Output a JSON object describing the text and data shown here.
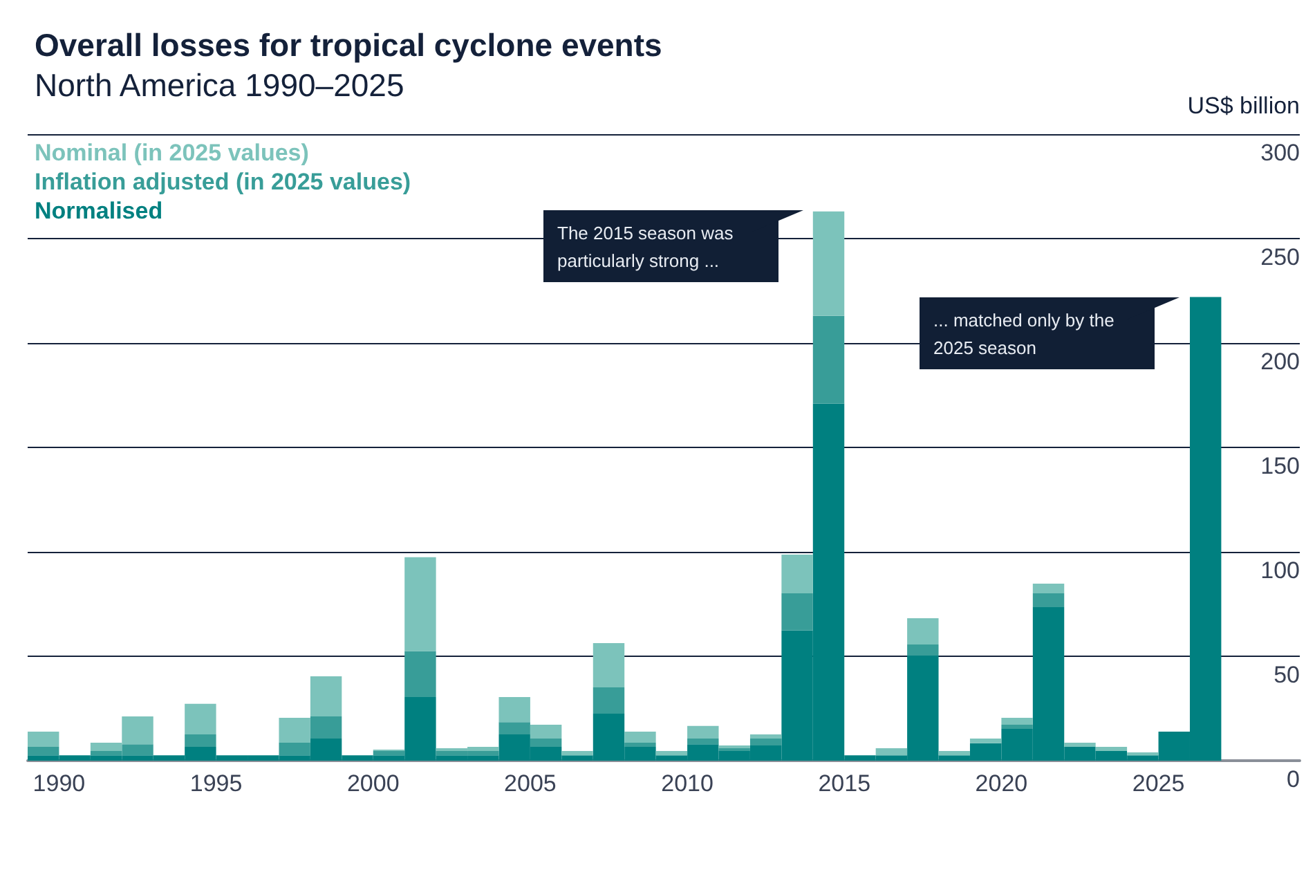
{
  "chart_data": {
    "type": "bar",
    "title": "Overall losses for tropical cyclone events",
    "subtitle": "North America 1990–2025",
    "ylabel": "US$ billion",
    "stacked": true,
    "x": [
      1989.5,
      1990.5,
      1991.5,
      1992.5,
      1993.5,
      1994.5,
      1995.5,
      1996.5,
      1997.5,
      1998.5,
      1999.5,
      2000.5,
      2001.5,
      2002.5,
      2003.5,
      2004.5,
      2005.5,
      2006.5,
      2007.5,
      2008.5,
      2009.5,
      2010.5,
      2011.5,
      2012.5,
      2013.5,
      2014.5,
      2015.5,
      2016.5,
      2017.5,
      2018.5,
      2019.5,
      2020.5,
      2021.5,
      2022.5,
      2023.5,
      2024.5,
      2025.5,
      2026.5
    ],
    "series": [
      {
        "name": "Normalised",
        "color": "#008080",
        "values": [
          2.6,
          2.6,
          2.6,
          2.6,
          2.6,
          6.6,
          2.6,
          2.6,
          2.6,
          10.6,
          2.6,
          2.6,
          30.5,
          2.6,
          2.6,
          12.6,
          6.6,
          2.6,
          22.5,
          6.6,
          2.6,
          7.9,
          4.6,
          7.3,
          62.3,
          171,
          2.6,
          2.6,
          50.3,
          2.6,
          8.4,
          15.2,
          73.5,
          6.6,
          4.6,
          2.6,
          13.9,
          222
        ]
      },
      {
        "name": "Inflation adjusted (in 2025 values)",
        "color": "#389d98",
        "values": [
          4.0,
          0,
          2.0,
          5.3,
          0,
          6.0,
          0,
          0,
          6.0,
          10.6,
          0,
          2.0,
          22.0,
          2.0,
          2.0,
          5.9,
          4.0,
          0,
          12.6,
          2.0,
          0,
          2.7,
          1.4,
          3.3,
          17.8,
          42,
          0,
          0,
          5.3,
          0,
          0,
          2.0,
          6.6,
          0,
          0,
          0,
          0,
          0
        ]
      },
      {
        "name": "Nominal (in 2025 values)",
        "color": "#7cc3bb",
        "values": [
          7.3,
          0,
          4.0,
          13.3,
          0,
          14.6,
          0,
          0,
          11.9,
          19.2,
          0,
          0.7,
          44.9,
          1.4,
          2.0,
          12.0,
          6.6,
          2.0,
          21.2,
          5.3,
          2.0,
          6.0,
          1.3,
          2.0,
          18.6,
          50,
          0,
          3.4,
          12.6,
          2.0,
          2.2,
          3.3,
          4.7,
          2.0,
          2.0,
          1.4,
          0,
          0
        ]
      }
    ],
    "xlim": [
      1989,
      2029.5
    ],
    "xticks": [
      1990,
      1995,
      2000,
      2005,
      2010,
      2015,
      2020,
      2025
    ],
    "ylim": [
      0,
      300
    ],
    "yticks": [
      0,
      50,
      100,
      150,
      200,
      250,
      300
    ],
    "grid": "y",
    "legend": "top left",
    "annotations": [
      "The 2015 season was particularly strong ...",
      "... matched only by the 2025 season"
    ]
  }
}
